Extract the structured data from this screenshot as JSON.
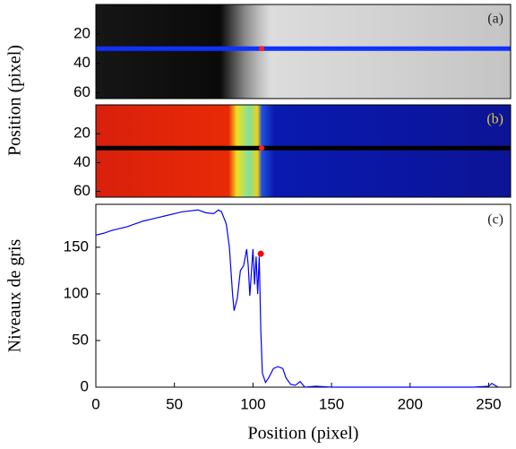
{
  "chart_data": [
    {
      "type": "image",
      "label": "(a)",
      "ylabel": "Position (pixel)",
      "ylim": [
        0,
        64
      ],
      "yticks": [
        20,
        40,
        60
      ]
    },
    {
      "type": "image",
      "label": "(b)",
      "ylim": [
        0,
        64
      ],
      "yticks": [
        20,
        40,
        60
      ]
    },
    {
      "type": "line",
      "label": "(c)",
      "ylabel": "Niveaux de gris",
      "xlabel": "Position (pixel)",
      "color": "#0000ff",
      "x": [
        0,
        5,
        10,
        15,
        20,
        25,
        30,
        35,
        40,
        45,
        50,
        55,
        60,
        65,
        70,
        75,
        78,
        80,
        83,
        85,
        87,
        88,
        90,
        92,
        94,
        96,
        97,
        98,
        100,
        101,
        102,
        103,
        104,
        105,
        106,
        108,
        110,
        113,
        116,
        119,
        121,
        124,
        127,
        130,
        133,
        140,
        150,
        200,
        240,
        250,
        252,
        256
      ],
      "values": [
        163,
        165,
        168,
        170,
        172,
        175,
        178,
        180,
        182,
        184,
        186,
        188,
        189,
        190,
        187,
        186,
        190,
        188,
        175,
        150,
        100,
        82,
        95,
        125,
        130,
        148,
        130,
        98,
        148,
        110,
        140,
        100,
        140,
        60,
        15,
        5,
        10,
        20,
        22,
        20,
        10,
        3,
        2,
        6,
        0,
        1,
        0,
        0,
        0,
        1,
        4,
        0
      ],
      "marker": {
        "x": 105,
        "y": 143,
        "color": "#ff0000"
      },
      "xlim": [
        0,
        264
      ],
      "ylim": [
        0,
        196
      ],
      "xticks": [
        0,
        50,
        100,
        150,
        200,
        250
      ],
      "yticks": [
        0,
        50,
        100,
        150
      ]
    }
  ]
}
